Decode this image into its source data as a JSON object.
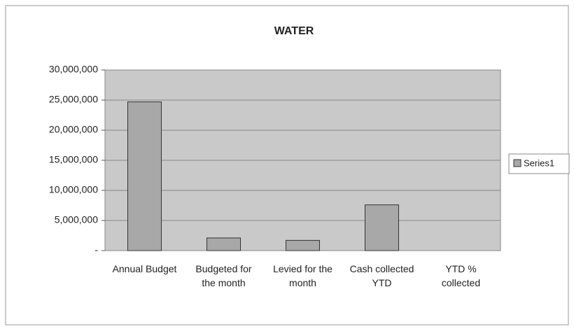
{
  "chart_data": {
    "type": "bar",
    "title": "WATER",
    "categories": [
      "Annual Budget",
      "Budgeted for the month",
      "Levied for the month",
      "Cash collected YTD",
      "YTD % collected"
    ],
    "series": [
      {
        "name": "Series1",
        "color": "#a8a8a8",
        "values": [
          24700000,
          2100000,
          1700000,
          7600000,
          0
        ]
      }
    ],
    "ylim": [
      0,
      30000000
    ],
    "yticks": [
      {
        "value": 0,
        "label": "-"
      },
      {
        "value": 5000000,
        "label": "5,000,000"
      },
      {
        "value": 10000000,
        "label": "10,000,000"
      },
      {
        "value": 15000000,
        "label": "15,000,000"
      },
      {
        "value": 20000000,
        "label": "20,000,000"
      },
      {
        "value": 25000000,
        "label": "25,000,000"
      },
      {
        "value": 30000000,
        "label": "30,000,000"
      }
    ],
    "grid": true,
    "legend": "right"
  }
}
